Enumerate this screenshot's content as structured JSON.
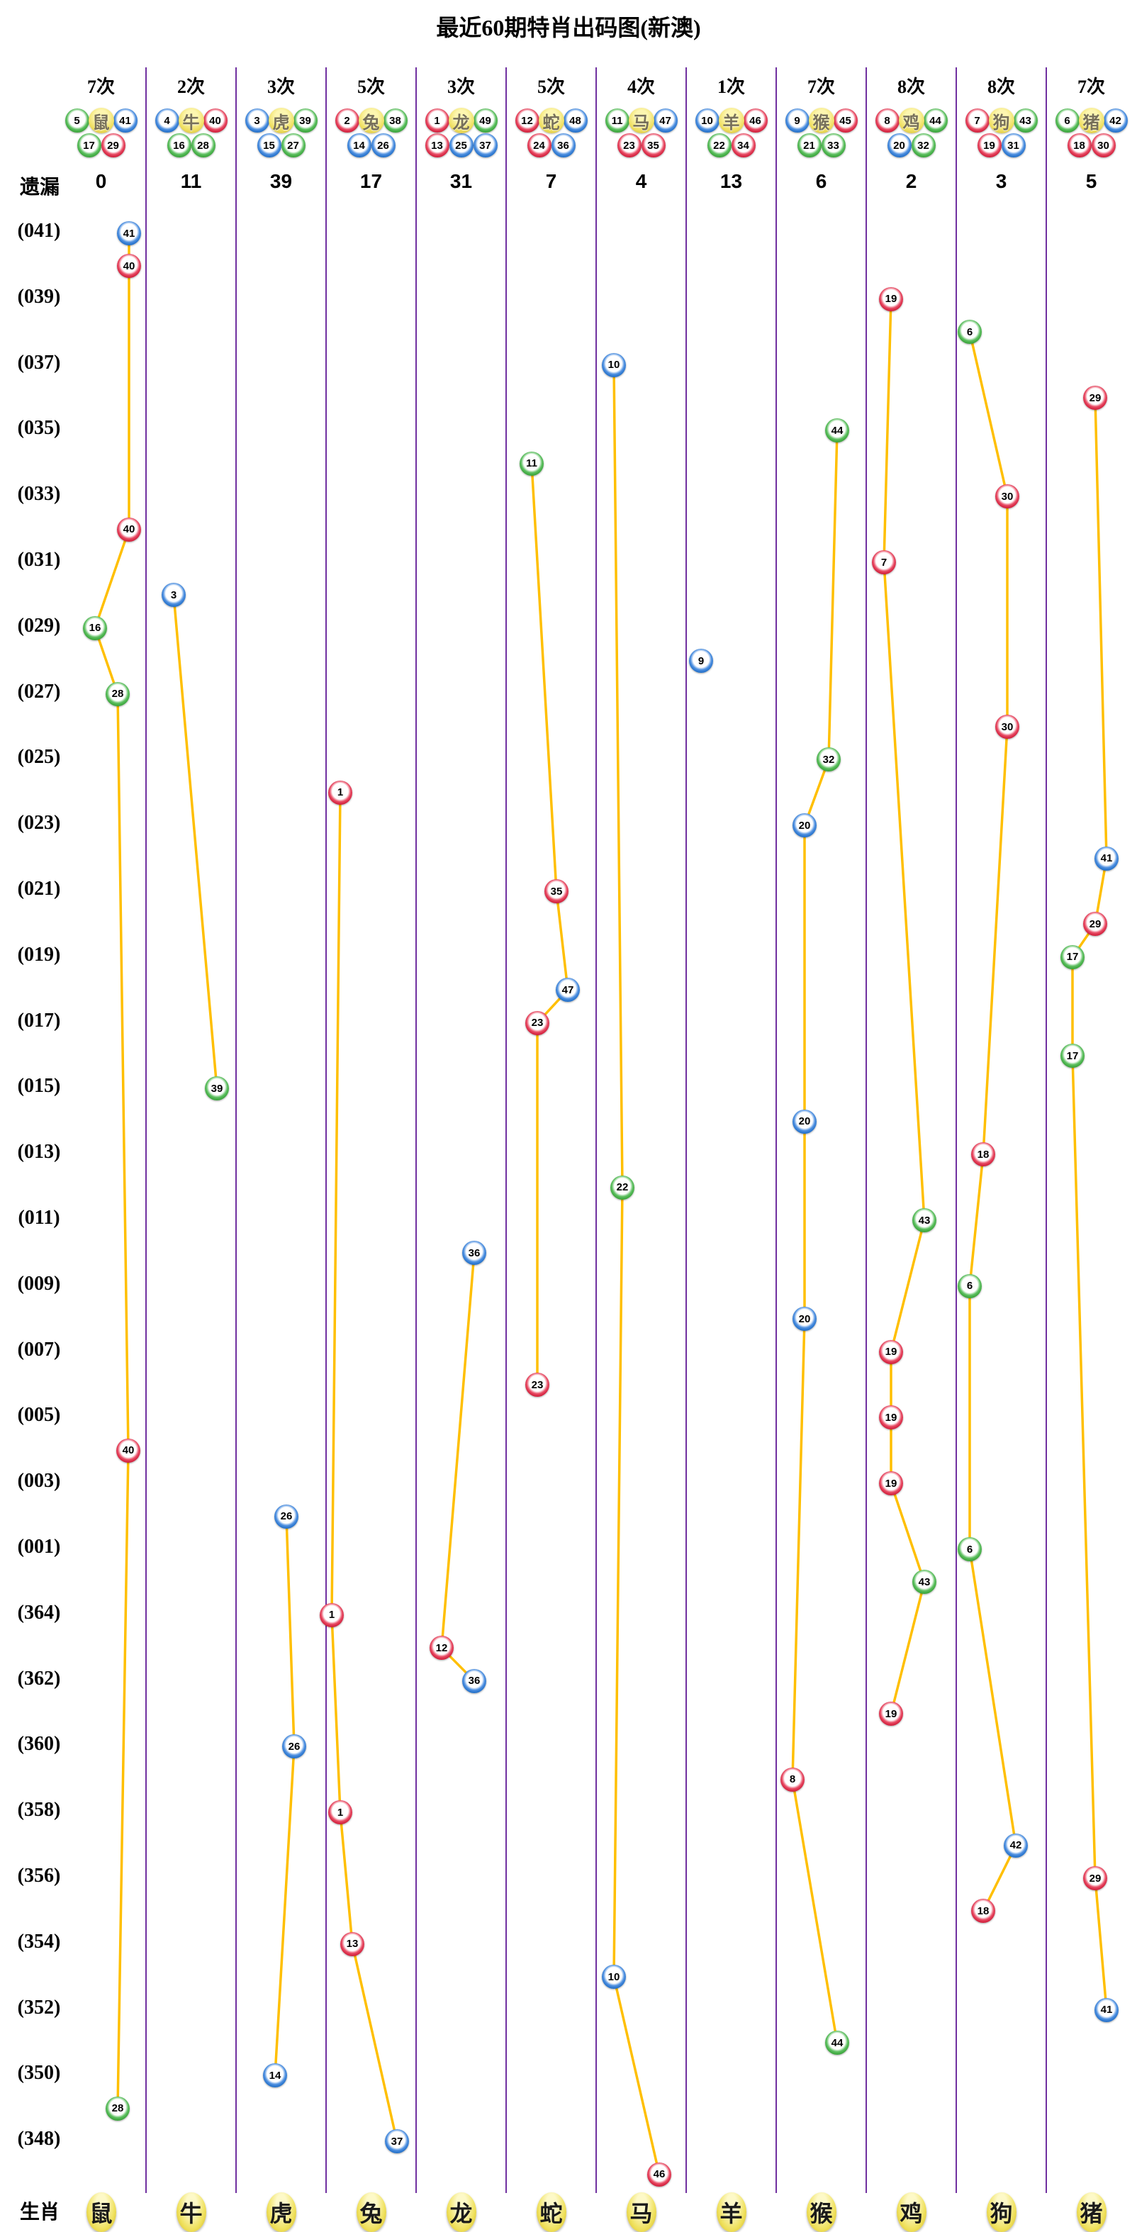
{
  "title": "最近60期特肖出码图(新澳)",
  "labels": {
    "miss": "遗漏",
    "zodiac": "生肖"
  },
  "palette": {
    "red": "#c8102e",
    "blue": "#1565c0",
    "green": "#2e9b2e",
    "line": "#ffbf00",
    "separator": "#7030a0",
    "yellow_ball": "#efe05a"
  },
  "columns": [
    {
      "zodiac": "鼠",
      "count": "7次",
      "miss": "0",
      "top": [
        {
          "n": 5,
          "c": "g"
        },
        {
          "n": 41,
          "c": "b"
        }
      ],
      "bottom": [
        {
          "n": 17,
          "c": "g"
        },
        {
          "n": 29,
          "c": "r"
        }
      ]
    },
    {
      "zodiac": "牛",
      "count": "2次",
      "miss": "11",
      "top": [
        {
          "n": 4,
          "c": "b"
        },
        {
          "n": 40,
          "c": "r"
        }
      ],
      "bottom": [
        {
          "n": 16,
          "c": "g"
        },
        {
          "n": 28,
          "c": "g"
        }
      ]
    },
    {
      "zodiac": "虎",
      "count": "3次",
      "miss": "39",
      "top": [
        {
          "n": 3,
          "c": "b"
        },
        {
          "n": 39,
          "c": "g"
        }
      ],
      "bottom": [
        {
          "n": 15,
          "c": "b"
        },
        {
          "n": 27,
          "c": "g"
        }
      ]
    },
    {
      "zodiac": "兔",
      "count": "5次",
      "miss": "17",
      "top": [
        {
          "n": 2,
          "c": "r"
        },
        {
          "n": 38,
          "c": "g"
        }
      ],
      "bottom": [
        {
          "n": 14,
          "c": "b"
        },
        {
          "n": 26,
          "c": "b"
        }
      ]
    },
    {
      "zodiac": "龙",
      "count": "3次",
      "miss": "31",
      "top": [
        {
          "n": 1,
          "c": "r"
        },
        {
          "n": 49,
          "c": "g"
        }
      ],
      "bottom": [
        {
          "n": 13,
          "c": "r"
        },
        {
          "n": 25,
          "c": "b"
        },
        {
          "n": 37,
          "c": "b"
        }
      ]
    },
    {
      "zodiac": "蛇",
      "count": "5次",
      "miss": "7",
      "top": [
        {
          "n": 12,
          "c": "r"
        },
        {
          "n": 48,
          "c": "b"
        }
      ],
      "bottom": [
        {
          "n": 24,
          "c": "r"
        },
        {
          "n": 36,
          "c": "b"
        }
      ]
    },
    {
      "zodiac": "马",
      "count": "4次",
      "miss": "4",
      "top": [
        {
          "n": 11,
          "c": "g"
        },
        {
          "n": 47,
          "c": "b"
        }
      ],
      "bottom": [
        {
          "n": 23,
          "c": "r"
        },
        {
          "n": 35,
          "c": "r"
        }
      ]
    },
    {
      "zodiac": "羊",
      "count": "1次",
      "miss": "13",
      "top": [
        {
          "n": 10,
          "c": "b"
        },
        {
          "n": 46,
          "c": "r"
        }
      ],
      "bottom": [
        {
          "n": 22,
          "c": "g"
        },
        {
          "n": 34,
          "c": "r"
        }
      ]
    },
    {
      "zodiac": "猴",
      "count": "7次",
      "miss": "6",
      "top": [
        {
          "n": 9,
          "c": "b"
        },
        {
          "n": 45,
          "c": "r"
        }
      ],
      "bottom": [
        {
          "n": 21,
          "c": "g"
        },
        {
          "n": 33,
          "c": "g"
        }
      ]
    },
    {
      "zodiac": "鸡",
      "count": "8次",
      "miss": "2",
      "top": [
        {
          "n": 8,
          "c": "r"
        },
        {
          "n": 44,
          "c": "g"
        }
      ],
      "bottom": [
        {
          "n": 20,
          "c": "b"
        },
        {
          "n": 32,
          "c": "g"
        }
      ]
    },
    {
      "zodiac": "狗",
      "count": "8次",
      "miss": "3",
      "top": [
        {
          "n": 7,
          "c": "r"
        },
        {
          "n": 43,
          "c": "g"
        }
      ],
      "bottom": [
        {
          "n": 19,
          "c": "r"
        },
        {
          "n": 31,
          "c": "b"
        }
      ]
    },
    {
      "zodiac": "猪",
      "count": "7次",
      "miss": "5",
      "top": [
        {
          "n": 6,
          "c": "g"
        },
        {
          "n": 42,
          "c": "b"
        }
      ],
      "bottom": [
        {
          "n": 18,
          "c": "r"
        },
        {
          "n": 30,
          "c": "r"
        }
      ]
    }
  ],
  "row_labels": [
    "(041)",
    "(039)",
    "(037)",
    "(035)",
    "(033)",
    "(031)",
    "(029)",
    "(027)",
    "(025)",
    "(023)",
    "(021)",
    "(019)",
    "(017)",
    "(015)",
    "(013)",
    "(011)",
    "(009)",
    "(007)",
    "(005)",
    "(003)",
    "(001)",
    "(364)",
    "(362)",
    "(360)",
    "(358)",
    "(356)",
    "(354)",
    "(352)",
    "(350)",
    "(348)"
  ],
  "balls": [
    {
      "p": "041",
      "z": 0,
      "n": 41,
      "c": "b",
      "x": 182,
      "r": 0
    },
    {
      "p": "040",
      "z": 0,
      "n": 40,
      "c": "r",
      "x": 182,
      "r": 0.5
    },
    {
      "p": "039",
      "z": 9,
      "n": 19,
      "c": "r",
      "x": 1257,
      "r": 1
    },
    {
      "p": "038",
      "z": 10,
      "n": 6,
      "c": "g",
      "x": 1368,
      "r": 1.5
    },
    {
      "p": "037",
      "z": 6,
      "n": 10,
      "c": "b",
      "x": 866,
      "r": 2
    },
    {
      "p": "036",
      "z": 11,
      "n": 29,
      "c": "r",
      "x": 1545,
      "r": 2.5
    },
    {
      "p": "035",
      "z": 8,
      "n": 44,
      "c": "g",
      "x": 1181,
      "r": 3
    },
    {
      "p": "034",
      "z": 5,
      "n": 11,
      "c": "g",
      "x": 750,
      "r": 3.5
    },
    {
      "p": "033",
      "z": 10,
      "n": 30,
      "c": "r",
      "x": 1421,
      "r": 4
    },
    {
      "p": "032",
      "z": 0,
      "n": 40,
      "c": "r",
      "x": 182,
      "r": 4.5
    },
    {
      "p": "031",
      "z": 9,
      "n": 7,
      "c": "r",
      "x": 1247,
      "r": 5
    },
    {
      "p": "030",
      "z": 1,
      "n": 3,
      "c": "b",
      "x": 245,
      "r": 5.5
    },
    {
      "p": "029",
      "z": 0,
      "n": 16,
      "c": "g",
      "x": 134,
      "r": 6
    },
    {
      "p": "028",
      "z": 7,
      "n": 9,
      "c": "b",
      "x": 989,
      "r": 6.5
    },
    {
      "p": "027",
      "z": 0,
      "n": 28,
      "c": "g",
      "x": 166,
      "r": 7
    },
    {
      "p": "026",
      "z": 10,
      "n": 30,
      "c": "r",
      "x": 1421,
      "r": 7.5
    },
    {
      "p": "025",
      "z": 8,
      "n": 32,
      "c": "g",
      "x": 1169,
      "r": 8
    },
    {
      "p": "024",
      "z": 3,
      "n": 1,
      "c": "r",
      "x": 480,
      "r": 8.5
    },
    {
      "p": "023",
      "z": 8,
      "n": 20,
      "c": "b",
      "x": 1135,
      "r": 9
    },
    {
      "p": "022",
      "z": 11,
      "n": 41,
      "c": "b",
      "x": 1561,
      "r": 9.5
    },
    {
      "p": "021",
      "z": 5,
      "n": 35,
      "c": "r",
      "x": 785,
      "r": 10
    },
    {
      "p": "020",
      "z": 11,
      "n": 29,
      "c": "r",
      "x": 1545,
      "r": 10.5
    },
    {
      "p": "019",
      "z": 11,
      "n": 17,
      "c": "g",
      "x": 1513,
      "r": 11
    },
    {
      "p": "018",
      "z": 5,
      "n": 47,
      "c": "b",
      "x": 801,
      "r": 11.5
    },
    {
      "p": "017",
      "z": 5,
      "n": 23,
      "c": "r",
      "x": 758,
      "r": 12
    },
    {
      "p": "016",
      "z": 11,
      "n": 17,
      "c": "g",
      "x": 1513,
      "r": 12.5
    },
    {
      "p": "015",
      "z": 1,
      "n": 39,
      "c": "g",
      "x": 306,
      "r": 13
    },
    {
      "p": "014",
      "z": 8,
      "n": 20,
      "c": "b",
      "x": 1135,
      "r": 13.5
    },
    {
      "p": "013",
      "z": 10,
      "n": 18,
      "c": "r",
      "x": 1387,
      "r": 14
    },
    {
      "p": "012",
      "z": 6,
      "n": 22,
      "c": "g",
      "x": 878,
      "r": 14.5
    },
    {
      "p": "011",
      "z": 9,
      "n": 43,
      "c": "g",
      "x": 1304,
      "r": 15
    },
    {
      "p": "010",
      "z": 4,
      "n": 36,
      "c": "b",
      "x": 669,
      "r": 15.5
    },
    {
      "p": "009",
      "z": 10,
      "n": 6,
      "c": "g",
      "x": 1368,
      "r": 16
    },
    {
      "p": "008",
      "z": 8,
      "n": 20,
      "c": "b",
      "x": 1135,
      "r": 16.5
    },
    {
      "p": "007",
      "z": 9,
      "n": 19,
      "c": "r",
      "x": 1257,
      "r": 17
    },
    {
      "p": "006",
      "z": 5,
      "n": 23,
      "c": "r",
      "x": 758,
      "r": 17.5
    },
    {
      "p": "005",
      "z": 9,
      "n": 19,
      "c": "r",
      "x": 1257,
      "r": 18
    },
    {
      "p": "004",
      "z": 0,
      "n": 40,
      "c": "r",
      "x": 181,
      "r": 18.5
    },
    {
      "p": "003",
      "z": 9,
      "n": 19,
      "c": "r",
      "x": 1257,
      "r": 19
    },
    {
      "p": "002",
      "z": 2,
      "n": 26,
      "c": "b",
      "x": 404,
      "r": 19.5
    },
    {
      "p": "001",
      "z": 10,
      "n": 6,
      "c": "g",
      "x": 1368,
      "r": 20
    },
    {
      "p": "365",
      "z": 9,
      "n": 43,
      "c": "g",
      "x": 1304,
      "r": 20.5
    },
    {
      "p": "364",
      "z": 3,
      "n": 1,
      "c": "r",
      "x": 468,
      "r": 21
    },
    {
      "p": "363",
      "z": 4,
      "n": 12,
      "c": "r",
      "x": 623,
      "r": 21.5
    },
    {
      "p": "362",
      "z": 4,
      "n": 36,
      "c": "b",
      "x": 669,
      "r": 22
    },
    {
      "p": "361",
      "z": 9,
      "n": 19,
      "c": "r",
      "x": 1257,
      "r": 22.5
    },
    {
      "p": "360",
      "z": 2,
      "n": 26,
      "c": "b",
      "x": 415,
      "r": 23
    },
    {
      "p": "359",
      "z": 8,
      "n": 8,
      "c": "r",
      "x": 1118,
      "r": 23.5
    },
    {
      "p": "358",
      "z": 3,
      "n": 1,
      "c": "r",
      "x": 480,
      "r": 24
    },
    {
      "p": "357",
      "z": 10,
      "n": 42,
      "c": "b",
      "x": 1433,
      "r": 24.5
    },
    {
      "p": "356",
      "z": 11,
      "n": 29,
      "c": "r",
      "x": 1545,
      "r": 25
    },
    {
      "p": "355",
      "z": 10,
      "n": 18,
      "c": "r",
      "x": 1387,
      "r": 25.5
    },
    {
      "p": "354",
      "z": 3,
      "n": 13,
      "c": "r",
      "x": 497,
      "r": 26
    },
    {
      "p": "353",
      "z": 6,
      "n": 10,
      "c": "b",
      "x": 866,
      "r": 26.5
    },
    {
      "p": "352",
      "z": 11,
      "n": 41,
      "c": "b",
      "x": 1561,
      "r": 27
    },
    {
      "p": "351",
      "z": 8,
      "n": 44,
      "c": "g",
      "x": 1181,
      "r": 27.5
    },
    {
      "p": "350",
      "z": 2,
      "n": 14,
      "c": "b",
      "x": 388,
      "r": 28
    },
    {
      "p": "349",
      "z": 0,
      "n": 28,
      "c": "g",
      "x": 166,
      "r": 28.5
    },
    {
      "p": "348",
      "z": 3,
      "n": 37,
      "c": "b",
      "x": 560,
      "r": 29
    },
    {
      "p": "347",
      "z": 6,
      "n": 46,
      "c": "r",
      "x": 930,
      "r": 29.5
    }
  ],
  "chart_data": {
    "type": "scatter",
    "title": "最近60期特肖出码图(新澳)",
    "x_categories": [
      "鼠",
      "牛",
      "虎",
      "兔",
      "龙",
      "蛇",
      "马",
      "羊",
      "猴",
      "鸡",
      "狗",
      "猪"
    ],
    "counts_per_zodiac": [
      7,
      2,
      3,
      5,
      3,
      5,
      4,
      1,
      7,
      8,
      8,
      7
    ],
    "miss_per_zodiac": [
      0,
      11,
      39,
      17,
      31,
      7,
      4,
      13,
      6,
      2,
      3,
      5
    ],
    "y_axis_period_labels": [
      "041",
      "039",
      "037",
      "035",
      "033",
      "031",
      "029",
      "027",
      "025",
      "023",
      "021",
      "019",
      "017",
      "015",
      "013",
      "011",
      "009",
      "007",
      "005",
      "003",
      "001",
      "364",
      "362",
      "360",
      "358",
      "356",
      "354",
      "352",
      "350",
      "348"
    ],
    "series": [
      {
        "name": "鼠",
        "points": [
          {
            "period": "041",
            "number": 41
          },
          {
            "period": "040",
            "number": 40
          },
          {
            "period": "032",
            "number": 40
          },
          {
            "period": "029",
            "number": 16
          },
          {
            "period": "027",
            "number": 28
          },
          {
            "period": "004",
            "number": 40
          },
          {
            "period": "349",
            "number": 28
          }
        ]
      },
      {
        "name": "牛",
        "points": [
          {
            "period": "030",
            "number": 3
          },
          {
            "period": "015",
            "number": 39
          }
        ]
      },
      {
        "name": "虎",
        "points": [
          {
            "period": "002",
            "number": 26
          },
          {
            "period": "360",
            "number": 26
          },
          {
            "period": "350",
            "number": 14
          }
        ]
      },
      {
        "name": "兔",
        "points": [
          {
            "period": "024",
            "number": 1
          },
          {
            "period": "364",
            "number": 1
          },
          {
            "period": "358",
            "number": 1
          },
          {
            "period": "354",
            "number": 13
          },
          {
            "period": "348",
            "number": 37
          }
        ]
      },
      {
        "name": "龙",
        "points": [
          {
            "period": "010",
            "number": 36
          },
          {
            "period": "363",
            "number": 12
          },
          {
            "period": "362",
            "number": 36
          }
        ]
      },
      {
        "name": "蛇",
        "points": [
          {
            "period": "034",
            "number": 11
          },
          {
            "period": "021",
            "number": 35
          },
          {
            "period": "018",
            "number": 47
          },
          {
            "period": "017",
            "number": 23
          },
          {
            "period": "006",
            "number": 23
          }
        ]
      },
      {
        "name": "马",
        "points": [
          {
            "period": "037",
            "number": 10
          },
          {
            "period": "012",
            "number": 22
          },
          {
            "period": "353",
            "number": 10
          },
          {
            "period": "347",
            "number": 46
          }
        ]
      },
      {
        "name": "羊",
        "points": [
          {
            "period": "028",
            "number": 9
          }
        ]
      },
      {
        "name": "猴",
        "points": [
          {
            "period": "035",
            "number": 44
          },
          {
            "period": "025",
            "number": 32
          },
          {
            "period": "023",
            "number": 20
          },
          {
            "period": "014",
            "number": 20
          },
          {
            "period": "008",
            "number": 20
          },
          {
            "period": "359",
            "number": 8
          },
          {
            "period": "351",
            "number": 44
          }
        ]
      },
      {
        "name": "鸡",
        "points": [
          {
            "period": "039",
            "number": 19
          },
          {
            "period": "031",
            "number": 7
          },
          {
            "period": "011",
            "number": 43
          },
          {
            "period": "007",
            "number": 19
          },
          {
            "period": "005",
            "number": 19
          },
          {
            "period": "003",
            "number": 19
          },
          {
            "period": "365",
            "number": 43
          },
          {
            "period": "361",
            "number": 19
          }
        ]
      },
      {
        "name": "狗",
        "points": [
          {
            "period": "038",
            "number": 6
          },
          {
            "period": "033",
            "number": 30
          },
          {
            "period": "026",
            "number": 30
          },
          {
            "period": "013",
            "number": 18
          },
          {
            "period": "009",
            "number": 6
          },
          {
            "period": "001",
            "number": 6
          },
          {
            "period": "357",
            "number": 42
          },
          {
            "period": "355",
            "number": 18
          }
        ]
      },
      {
        "name": "猪",
        "points": [
          {
            "period": "036",
            "number": 29
          },
          {
            "period": "022",
            "number": 41
          },
          {
            "period": "020",
            "number": 29
          },
          {
            "period": "019",
            "number": 17
          },
          {
            "period": "016",
            "number": 17
          },
          {
            "period": "356",
            "number": 29
          },
          {
            "period": "352",
            "number": 41
          }
        ]
      }
    ],
    "legend_position": "none",
    "grid": "vertical-purple-separators",
    "line_style": "orange polyline connecting successive draws within each zodiac column"
  }
}
